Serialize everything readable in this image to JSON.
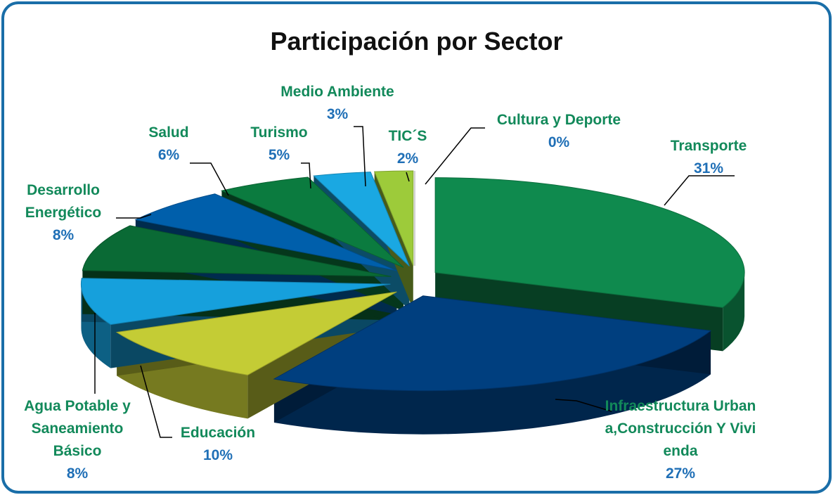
{
  "chart_data": {
    "type": "pie",
    "title": "Participación por Sector",
    "categories": [
      "Transporte",
      "Infraestructura Urbana,Construcción Y Vivienda",
      "Educación",
      "Agua Potable y Saneamiento Básico",
      "Desarrollo Energético",
      "Salud",
      "Turismo",
      "Medio Ambiente",
      "TIC´S",
      "Cultura y Deporte"
    ],
    "values": [
      31,
      27,
      10,
      8,
      8,
      6,
      5,
      3,
      2,
      0
    ],
    "value_labels": [
      "31%",
      "27%",
      "10%",
      "8%",
      "8%",
      "6%",
      "5%",
      "3%",
      "2%",
      "0%"
    ],
    "colors": [
      "#0f8a4e",
      "#003f7f",
      "#c4cc35",
      "#16a0dc",
      "#0a6a35",
      "#005fab",
      "#0b7b3f",
      "#1aa8e2",
      "#9dcb3a",
      "#c8c8d0"
    ]
  }
}
